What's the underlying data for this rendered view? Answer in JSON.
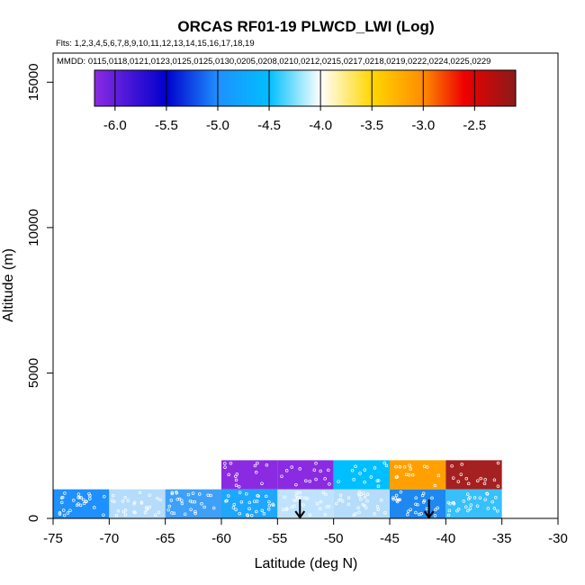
{
  "chart_data": {
    "type": "heatmap",
    "title": "ORCAS RF01-19 PLWCD_LWI (Log)",
    "flights_note": "Flts: 1,2,3,4,5,6,7,8,9,10,11,12,13,14,15,16,17,18,19",
    "dates_note": "MMDD: 0115,0118,0121,0123,0125,0125,0130,0205,0208,0210,0212,0215,0217,0218,0219,0222,0224,0225,0229",
    "xlabel": "Latitude (deg N)",
    "ylabel": "Altitude (m)",
    "xlim": [
      -75,
      -30
    ],
    "ylim": [
      0,
      16000
    ],
    "x_ticks": [
      "-75",
      "-70",
      "-65",
      "-60",
      "-55",
      "-50",
      "-45",
      "-40",
      "-35",
      "-30"
    ],
    "y_ticks": [
      "0",
      "5000",
      "10000",
      "15000"
    ],
    "colorbar": {
      "range": [
        -6.2,
        -2.1
      ],
      "ticks": [
        "-6.0",
        "-5.5",
        "-5.0",
        "-4.5",
        "-4.0",
        "-3.5",
        "-3.0",
        "-2.5"
      ],
      "stops": [
        {
          "v": -6.2,
          "c": "#8a2be2"
        },
        {
          "v": -5.5,
          "c": "#0000cd"
        },
        {
          "v": -5.0,
          "c": "#1e90ff"
        },
        {
          "v": -4.5,
          "c": "#00bfff"
        },
        {
          "v": -4.0,
          "c": "#ffffff"
        },
        {
          "v": -3.5,
          "c": "#ffd700"
        },
        {
          "v": -3.0,
          "c": "#ff8c00"
        },
        {
          "v": -2.6,
          "c": "#ee0000"
        },
        {
          "v": -2.1,
          "c": "#8b1a1a"
        }
      ]
    },
    "cells": [
      {
        "lat": [
          -75,
          -70
        ],
        "alt": [
          0,
          1000
        ],
        "color": "#1e90ff"
      },
      {
        "lat": [
          -70,
          -65
        ],
        "alt": [
          0,
          1000
        ],
        "color": "#b5dcfa"
      },
      {
        "lat": [
          -65,
          -60
        ],
        "alt": [
          0,
          1000
        ],
        "color": "#3fa0f7"
      },
      {
        "lat": [
          -60,
          -55
        ],
        "alt": [
          0,
          1000
        ],
        "color": "#1ea7ff"
      },
      {
        "lat": [
          -55,
          -50
        ],
        "alt": [
          0,
          1000
        ],
        "color": "#bfe3ff"
      },
      {
        "lat": [
          -50,
          -45
        ],
        "alt": [
          0,
          1000
        ],
        "color": "#b5dcfa"
      },
      {
        "lat": [
          -45,
          -40
        ],
        "alt": [
          0,
          1000
        ],
        "color": "#1e88f0"
      },
      {
        "lat": [
          -40,
          -35
        ],
        "alt": [
          0,
          1000
        ],
        "color": "#38c0fc"
      },
      {
        "lat": [
          -60,
          -55
        ],
        "alt": [
          1000,
          2000
        ],
        "color": "#8a2be2"
      },
      {
        "lat": [
          -55,
          -50
        ],
        "alt": [
          1000,
          2000
        ],
        "color": "#8a2be2"
      },
      {
        "lat": [
          -50,
          -45
        ],
        "alt": [
          1000,
          2000
        ],
        "color": "#00bfff"
      },
      {
        "lat": [
          -45,
          -40
        ],
        "alt": [
          1000,
          2000
        ],
        "color": "#ffa000"
      },
      {
        "lat": [
          -40,
          -35
        ],
        "alt": [
          1000,
          2000
        ],
        "color": "#a52020"
      }
    ],
    "arrows": [
      {
        "lat": -53,
        "alt_top": 650,
        "alt_bottom": 0
      },
      {
        "lat": -41.5,
        "alt_top": 650,
        "alt_bottom": 0
      }
    ]
  }
}
